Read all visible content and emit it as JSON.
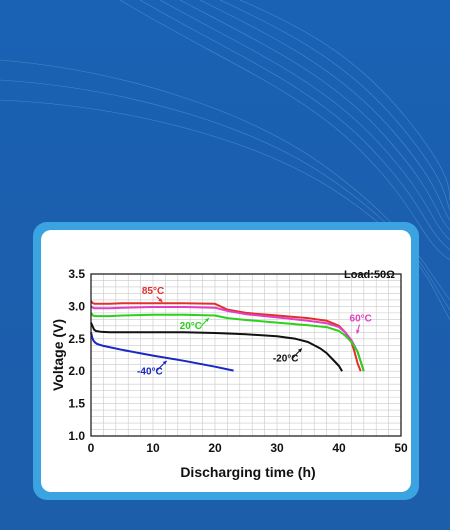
{
  "colors": {
    "background": "#1b5fae",
    "card_border": "#3aa3e0",
    "card": "#ffffff"
  },
  "chart_data": {
    "type": "line",
    "xlabel": "Discharging time (h)",
    "ylabel": "Voltage (V)",
    "xlim": [
      0,
      50
    ],
    "ylim": [
      1.0,
      3.5
    ],
    "xticks": [
      "0",
      "10",
      "20",
      "30",
      "40",
      "50"
    ],
    "yticks": [
      "1.0",
      "1.5",
      "2.0",
      "2.5",
      "3.0",
      "3.5"
    ],
    "grid": true,
    "annotation": "Load:50Ω",
    "series": [
      {
        "name": "85°C",
        "color": "#e0302c",
        "x": [
          0,
          0.3,
          0.6,
          1,
          3,
          5,
          10,
          15,
          20,
          22,
          25,
          30,
          35,
          38,
          40,
          41,
          42,
          42.5,
          43,
          43.5
        ],
        "y": [
          3.08,
          3.05,
          3.04,
          3.04,
          3.04,
          3.05,
          3.05,
          3.05,
          3.04,
          2.95,
          2.9,
          2.86,
          2.82,
          2.78,
          2.7,
          2.6,
          2.45,
          2.3,
          2.12,
          2.0
        ]
      },
      {
        "name": "60°C",
        "color": "#e23fc3",
        "x": [
          0,
          0.3,
          0.6,
          1,
          3,
          5,
          10,
          15,
          20,
          22,
          25,
          30,
          35,
          38,
          40,
          41,
          42,
          43,
          43.5,
          44
        ],
        "y": [
          3.0,
          2.98,
          2.97,
          2.97,
          2.97,
          2.98,
          2.99,
          2.99,
          2.98,
          2.93,
          2.88,
          2.83,
          2.78,
          2.74,
          2.68,
          2.6,
          2.48,
          2.3,
          2.15,
          2.0
        ]
      },
      {
        "name": "20°C",
        "color": "#2dd11c",
        "x": [
          0,
          0.3,
          0.6,
          1,
          3,
          5,
          10,
          15,
          20,
          22,
          25,
          30,
          35,
          38,
          40,
          41,
          42,
          43,
          43.5,
          44
        ],
        "y": [
          2.9,
          2.86,
          2.85,
          2.85,
          2.85,
          2.86,
          2.87,
          2.87,
          2.86,
          2.82,
          2.79,
          2.75,
          2.71,
          2.68,
          2.62,
          2.55,
          2.45,
          2.3,
          2.15,
          2.0
        ]
      },
      {
        "name": "-20°C",
        "color": "#111111",
        "x": [
          0,
          0.3,
          0.5,
          0.8,
          1.5,
          3,
          5,
          10,
          15,
          20,
          25,
          30,
          33,
          35,
          37,
          38,
          39,
          40,
          40.5
        ],
        "y": [
          2.75,
          2.68,
          2.64,
          2.62,
          2.61,
          2.6,
          2.6,
          2.6,
          2.6,
          2.59,
          2.57,
          2.54,
          2.5,
          2.45,
          2.35,
          2.28,
          2.18,
          2.08,
          2.0
        ]
      },
      {
        "name": "-40°C",
        "color": "#1a27c2",
        "x": [
          0,
          0.2,
          0.4,
          0.7,
          1,
          2,
          5,
          10,
          15,
          20,
          23
        ],
        "y": [
          2.6,
          2.52,
          2.47,
          2.44,
          2.42,
          2.39,
          2.33,
          2.24,
          2.16,
          2.07,
          2.01
        ]
      }
    ]
  }
}
